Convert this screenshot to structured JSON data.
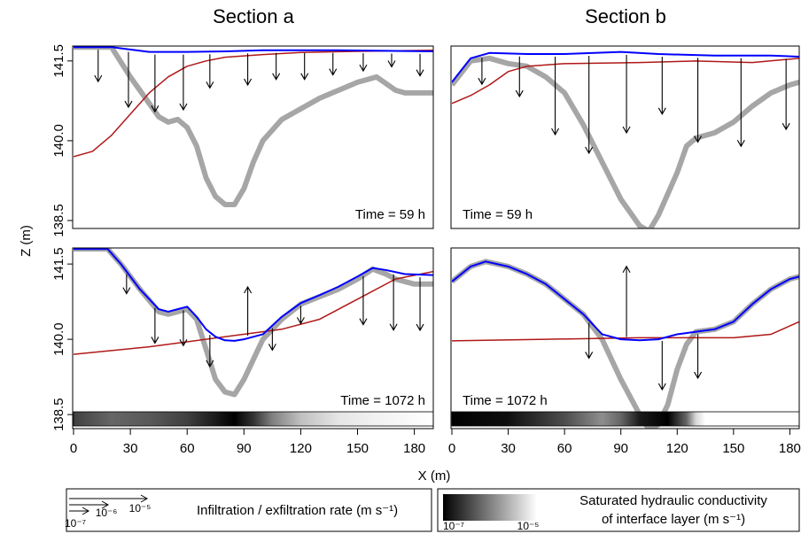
{
  "x_label": "X (m)",
  "y_label": "Z (m)",
  "chart_data": [
    {
      "type": "line",
      "title": "Section a",
      "annotation": "Time = 59 h",
      "xlim": [
        0,
        190
      ],
      "ylim": [
        138.35,
        141.78
      ],
      "xticks": [
        0,
        30,
        60,
        90,
        120,
        150,
        180
      ],
      "yticks": [
        138.5,
        {
          "value": 140,
          "label": "140.0"
        },
        141.5
      ],
      "series": [
        {
          "color": "#a6a6a6",
          "x": [
            0,
            20,
            30,
            40,
            45,
            50,
            55,
            60,
            65,
            70,
            75,
            80,
            85,
            90,
            95,
            100,
            110,
            120,
            130,
            140,
            150,
            160,
            170,
            175,
            190
          ],
          "values": [
            141.76,
            141.76,
            141.2,
            140.7,
            140.45,
            140.35,
            140.4,
            140.25,
            139.9,
            139.3,
            138.95,
            138.8,
            138.8,
            139.1,
            139.6,
            140.0,
            140.4,
            140.6,
            140.8,
            140.95,
            141.1,
            141.2,
            140.95,
            140.9,
            140.9
          ]
        },
        {
          "color": "#b01818",
          "x": [
            0,
            10,
            20,
            30,
            40,
            50,
            60,
            70,
            80,
            100,
            120,
            150,
            190
          ],
          "values": [
            139.7,
            139.8,
            140.1,
            140.5,
            140.9,
            141.2,
            141.4,
            141.5,
            141.57,
            141.62,
            141.66,
            141.68,
            141.7
          ]
        },
        {
          "color": "#0000ff",
          "x": [
            0,
            20,
            40,
            60,
            80,
            100,
            140,
            190
          ],
          "values": [
            141.76,
            141.76,
            141.67,
            141.67,
            141.68,
            141.7,
            141.7,
            141.68
          ]
        }
      ],
      "arrows": {
        "x": [
          13,
          29,
          43,
          58,
          72,
          92,
          107,
          122,
          137,
          153,
          168,
          183
        ],
        "values": [
          5.1e-07,
          3.2e-06,
          3.6e-06,
          3.2e-06,
          6.2e-07,
          5e-07,
          2.8e-07,
          2.8e-07,
          1.5e-07,
          7.3e-08,
          2.8e-08,
          1.5e-07
        ]
      }
    },
    {
      "type": "line",
      "title": "Section b",
      "annotation": "Time = 59 h",
      "xlim": [
        0,
        185
      ],
      "ylim": [
        138.35,
        141.78
      ],
      "xticks": [
        0,
        30,
        60,
        90,
        120,
        150,
        180
      ],
      "yticks": [
        138.5,
        {
          "value": 140,
          "label": "140.0"
        },
        141.5
      ],
      "series": [
        {
          "color": "#a6a6a6",
          "x": [
            0,
            10,
            20,
            30,
            40,
            50,
            60,
            70,
            80,
            90,
            100,
            105,
            110,
            120,
            125,
            130,
            140,
            150,
            160,
            170,
            180,
            185
          ],
          "values": [
            141.05,
            141.5,
            141.55,
            141.45,
            141.4,
            141.2,
            140.9,
            140.3,
            139.6,
            138.9,
            138.4,
            138.3,
            138.6,
            139.4,
            139.9,
            140.05,
            140.15,
            140.35,
            140.65,
            140.9,
            141.05,
            141.1
          ]
        },
        {
          "color": "#b01818",
          "x": [
            0,
            10,
            20,
            30,
            40,
            60,
            100,
            130,
            160,
            185
          ],
          "values": [
            140.7,
            140.85,
            141.05,
            141.3,
            141.4,
            141.45,
            141.47,
            141.5,
            141.47,
            141.55
          ]
        },
        {
          "color": "#0000ff",
          "x": [
            0,
            10,
            20,
            40,
            60,
            90,
            110,
            140,
            170,
            185
          ],
          "values": [
            141.1,
            141.55,
            141.65,
            141.63,
            141.63,
            141.67,
            141.63,
            141.6,
            141.6,
            141.58
          ]
        }
      ],
      "arrows": {
        "x": [
          16,
          36,
          55,
          73,
          93,
          112,
          131,
          154,
          178
        ],
        "values": [
          2.8e-07,
          1.1e-06,
          1e-05,
          2.1e-05,
          1e-05,
          3.6e-06,
          1.3e-05,
          1.5e-05,
          7.2e-06
        ]
      }
    },
    {
      "type": "line",
      "annotation": "Time = 1072 h",
      "xlim": [
        0,
        190
      ],
      "ylim": [
        138.22,
        141.82
      ],
      "xticks": [
        0,
        30,
        60,
        90,
        120,
        150,
        180
      ],
      "yticks": [
        138.5,
        {
          "value": 140,
          "label": "140.0"
        },
        141.5
      ],
      "series": [
        {
          "color": "#a6a6a6",
          "x": [
            0,
            18,
            25,
            35,
            45,
            50,
            55,
            60,
            65,
            70,
            75,
            80,
            85,
            90,
            95,
            100,
            110,
            120,
            130,
            140,
            150,
            158,
            165,
            170,
            180,
            190
          ],
          "values": [
            141.8,
            141.8,
            141.5,
            141.0,
            140.55,
            140.5,
            140.55,
            140.6,
            140.4,
            139.8,
            139.2,
            138.95,
            138.9,
            139.2,
            139.6,
            140.0,
            140.4,
            140.7,
            140.85,
            141.0,
            141.2,
            141.4,
            141.3,
            141.2,
            141.1,
            141.1
          ]
        },
        {
          "color": "#b01818",
          "x": [
            0,
            40,
            80,
            110,
            130,
            150,
            170,
            190
          ],
          "values": [
            139.7,
            139.85,
            140.05,
            140.2,
            140.4,
            140.8,
            141.2,
            141.35
          ]
        },
        {
          "color": "#0000ff",
          "x": [
            0,
            18,
            25,
            35,
            45,
            50,
            55,
            60,
            65,
            70,
            75,
            80,
            85,
            90,
            95,
            100,
            110,
            120,
            130,
            140,
            150,
            158,
            165,
            175,
            190
          ],
          "values": [
            141.8,
            141.8,
            141.5,
            141.0,
            140.6,
            140.55,
            140.6,
            140.65,
            140.45,
            140.2,
            140.05,
            139.98,
            139.97,
            140.0,
            140.05,
            140.1,
            140.45,
            140.72,
            140.88,
            141.05,
            141.25,
            141.42,
            141.38,
            141.3,
            141.28
          ]
        }
      ],
      "arrows": {
        "x": [
          28,
          43,
          58,
          72,
          92,
          105,
          120,
          153,
          169,
          183
        ],
        "values": [
          1e-07,
          7.2e-07,
          7.2e-07,
          5e-07,
          -2.1e-06,
          1.5e-07,
          7.3e-08,
          2.1e-06,
          3.3e-06,
          2.8e-06
        ]
      },
      "conductivity": {
        "x": [
          0,
          20,
          40,
          60,
          75,
          85,
          95,
          105,
          120,
          140,
          160,
          190
        ],
        "values": [
          3.2e-07,
          6.3e-07,
          5e-07,
          3.2e-07,
          1.6e-07,
          1e-07,
          2.5e-07,
          1e-06,
          3.2e-06,
          6.3e-06,
          7.9e-06,
          1e-05
        ]
      }
    },
    {
      "type": "line",
      "annotation": "Time = 1072 h",
      "xlim": [
        0,
        185
      ],
      "ylim": [
        138.22,
        141.82
      ],
      "xticks": [
        0,
        30,
        60,
        90,
        120,
        150,
        180
      ],
      "yticks": [
        138.5,
        {
          "value": 140,
          "label": "140.0"
        },
        141.5
      ],
      "series": [
        {
          "color": "#a6a6a6",
          "x": [
            0,
            10,
            18,
            30,
            40,
            50,
            60,
            70,
            80,
            90,
            100,
            105,
            110,
            115,
            120,
            125,
            130,
            140,
            150,
            160,
            170,
            180,
            185
          ],
          "values": [
            141.15,
            141.45,
            141.55,
            141.45,
            141.3,
            141.1,
            140.8,
            140.5,
            140.0,
            139.2,
            138.5,
            138.2,
            138.3,
            138.7,
            139.4,
            139.9,
            140.15,
            140.2,
            140.35,
            140.7,
            141.0,
            141.2,
            141.25
          ]
        },
        {
          "color": "#b01818",
          "x": [
            0,
            50,
            100,
            150,
            170,
            185
          ],
          "values": [
            139.97,
            140.0,
            140.03,
            140.03,
            140.1,
            140.35
          ]
        },
        {
          "color": "#0000ff",
          "x": [
            0,
            10,
            18,
            30,
            40,
            50,
            60,
            70,
            80,
            90,
            100,
            110,
            120,
            130,
            140,
            150,
            160,
            170,
            180,
            185
          ],
          "values": [
            141.15,
            141.45,
            141.55,
            141.45,
            141.3,
            141.1,
            140.8,
            140.5,
            140.1,
            140.0,
            139.98,
            140.0,
            140.1,
            140.15,
            140.2,
            140.35,
            140.7,
            141.0,
            141.2,
            141.25
          ]
        }
      ],
      "arrows": {
        "x": [
          73,
          93,
          112,
          131
        ],
        "values": [
          7.2e-07,
          -7.2e-06,
          2.1e-06,
          1.5e-06
        ]
      },
      "conductivity": {
        "x": [
          0,
          30,
          60,
          80,
          90,
          100,
          115,
          125,
          130,
          135,
          185
        ],
        "values": [
          1e-07,
          1.3e-07,
          4e-07,
          1.3e-06,
          6.3e-07,
          1.6e-07,
          1e-07,
          6.3e-07,
          5e-06,
          1e-05,
          1e-05
        ]
      }
    }
  ],
  "legend": {
    "arrow_title": "Infiltration / exfiltration rate (m s⁻¹)",
    "arrow_ticks": [
      {
        "value": 1e-07,
        "label": "10⁻⁷"
      },
      {
        "value": 1e-06,
        "label": "10⁻⁶"
      },
      {
        "value": 1e-05,
        "label": "10⁻⁵"
      }
    ],
    "k_title": [
      "Saturated hydraulic conductivity",
      "of interface layer (m s⁻¹)"
    ],
    "k_ticks": [
      {
        "value": 1e-07,
        "label": "10⁻⁷"
      },
      {
        "value": 1e-05,
        "label": "10⁻⁵"
      }
    ]
  }
}
